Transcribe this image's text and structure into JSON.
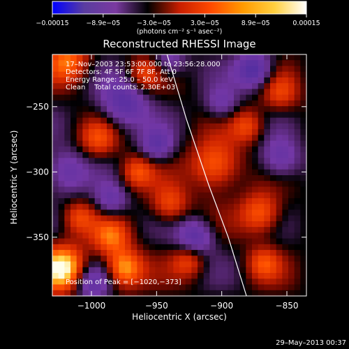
{
  "chart_data": {
    "type": "heatmap",
    "title": "Reconstructed RHESSI Image",
    "xlabel": "Heliocentric X (arcsec)",
    "ylabel": "Heliocentric Y (arcsec)",
    "xlim": [
      -1030,
      -835
    ],
    "ylim": [
      -395,
      -210
    ],
    "xticks": [
      -1000,
      -950,
      -900,
      -850
    ],
    "xtick_labels": [
      "−1000",
      "−950",
      "−900",
      "−850"
    ],
    "yticks": [
      -250,
      -300,
      -350
    ],
    "ytick_labels": [
      "−250",
      "−300",
      "−350"
    ],
    "colorbar": {
      "range": [
        -0.00015,
        0.00015
      ],
      "tick_labels": [
        "−0.00015",
        "−8.9e−05",
        "−3.0e−05",
        "3.0e−05",
        "8.9e−05",
        "0.00015"
      ],
      "units_label": "(photons cm⁻² s⁻¹ asec⁻²)",
      "colormap": [
        "#0000ff",
        "#5a3ca0",
        "#7a3aa0",
        "#000000",
        "#c81e00",
        "#ff4a00",
        "#ff9a00",
        "#ffd040",
        "#ffffff"
      ]
    },
    "annotations": [
      "17–Nov–2003 23:53:00.000 to 23:56:28.000",
      "Detectors: 4F 5F 6F 7F 8F, Att 0",
      "Energy Range: 25.0 – 50.0 keV",
      "Clean    Total counts: 2.30E+03"
    ],
    "peak_label": "Position of Peak = [−1020,−373]",
    "limb": [
      [
        -942,
        -210
      ],
      [
        -927,
        -260
      ],
      [
        -910,
        -310
      ],
      [
        -895,
        -350
      ],
      [
        -881,
        -395
      ]
    ],
    "sources": [
      {
        "x": -1022,
        "y": -374,
        "s": 12,
        "a": 1.0
      },
      {
        "x": -975,
        "y": -374,
        "s": 10,
        "a": 0.8
      },
      {
        "x": -1018,
        "y": -215,
        "s": 11,
        "a": 0.6
      },
      {
        "x": -905,
        "y": -295,
        "s": 13,
        "a": 0.65
      },
      {
        "x": -870,
        "y": -332,
        "s": 11,
        "a": 0.6
      },
      {
        "x": -985,
        "y": -350,
        "s": 10,
        "a": 0.55
      },
      {
        "x": -940,
        "y": -325,
        "s": 10,
        "a": 0.5
      },
      {
        "x": -995,
        "y": -275,
        "s": 10,
        "a": 0.45
      },
      {
        "x": -855,
        "y": -240,
        "s": 10,
        "a": 0.4
      },
      {
        "x": -880,
        "y": -265,
        "s": 9,
        "a": 0.45
      },
      {
        "x": -960,
        "y": -225,
        "s": 9,
        "a": 0.4
      },
      {
        "x": -1010,
        "y": -335,
        "s": 9,
        "a": 0.45
      },
      {
        "x": -925,
        "y": -368,
        "s": 9,
        "a": 0.45
      },
      {
        "x": -868,
        "y": -370,
        "s": 9,
        "a": 0.45
      },
      {
        "x": -965,
        "y": -300,
        "s": 9,
        "a": 0.5
      },
      {
        "x": -975,
        "y": -248,
        "s": 13,
        "a": -0.6
      },
      {
        "x": -875,
        "y": -222,
        "s": 10,
        "a": -0.7
      },
      {
        "x": -855,
        "y": -290,
        "s": 11,
        "a": -0.5
      },
      {
        "x": -1020,
        "y": -300,
        "s": 12,
        "a": -0.5
      },
      {
        "x": -920,
        "y": -350,
        "s": 10,
        "a": -0.6
      },
      {
        "x": -950,
        "y": -280,
        "s": 9,
        "a": -0.5
      },
      {
        "x": -1000,
        "y": -385,
        "s": 10,
        "a": -0.5
      },
      {
        "x": -940,
        "y": -215,
        "s": 9,
        "a": -0.4
      },
      {
        "x": -900,
        "y": -248,
        "s": 9,
        "a": -0.4
      },
      {
        "x": -985,
        "y": -322,
        "s": 9,
        "a": -0.45
      }
    ]
  },
  "footer": {
    "timestamp": "29–May–2013 00:37"
  }
}
